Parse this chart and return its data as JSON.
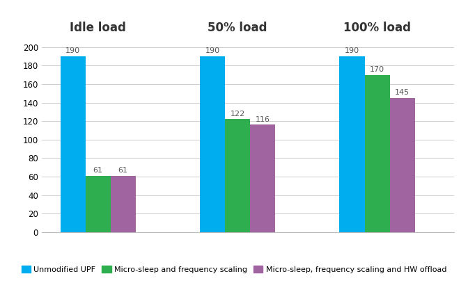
{
  "groups": [
    "Idle load",
    "50% load",
    "100% load"
  ],
  "series": [
    {
      "label": "Unmodified UPF",
      "color": "#00AEEF",
      "values": [
        190,
        190,
        190
      ]
    },
    {
      "label": "Micro-sleep and frequency scaling",
      "color": "#2EAE4E",
      "values": [
        61,
        122,
        170
      ]
    },
    {
      "label": "Micro-sleep, frequency scaling and HW offload",
      "color": "#A064A0",
      "values": [
        61,
        116,
        145
      ]
    }
  ],
  "ylim": [
    0,
    205
  ],
  "yticks": [
    0,
    20,
    40,
    60,
    80,
    100,
    120,
    140,
    160,
    180,
    200
  ],
  "background_color": "#FFFFFF",
  "grid_color": "#CCCCCC",
  "bar_width": 0.18,
  "group_centers": [
    0.3,
    1.3,
    2.3
  ],
  "xlim": [
    -0.1,
    2.85
  ],
  "title_fontsize": 12,
  "value_fontsize": 8,
  "legend_fontsize": 8,
  "tick_fontsize": 8.5
}
